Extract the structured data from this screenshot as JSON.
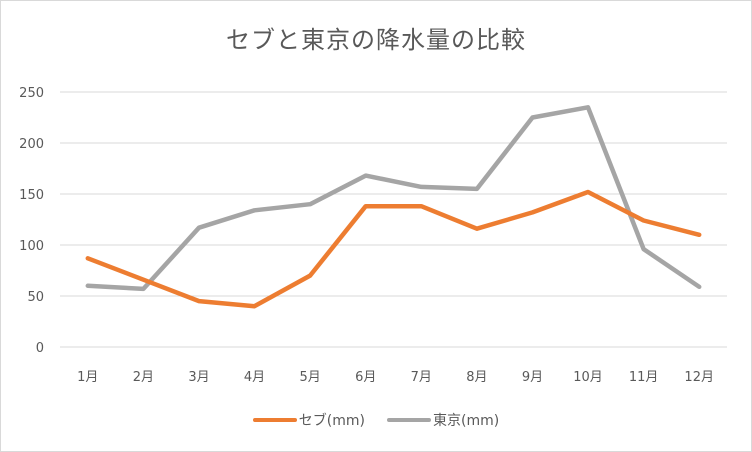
{
  "chart_data": {
    "type": "line",
    "title": "セブと東京の降水量の比較",
    "xlabel": "",
    "ylabel": "",
    "categories": [
      "1月",
      "2月",
      "3月",
      "4月",
      "5月",
      "6月",
      "7月",
      "8月",
      "9月",
      "10月",
      "11月",
      "12月"
    ],
    "series": [
      {
        "name": "セブ(mm)",
        "color": "#ED7D31",
        "values": [
          87,
          66,
          45,
          40,
          70,
          138,
          138,
          116,
          132,
          152,
          124,
          110
        ]
      },
      {
        "name": "東京(mm)",
        "color": "#A5A5A5",
        "values": [
          60,
          57,
          117,
          134,
          140,
          168,
          157,
          155,
          225,
          235,
          96,
          59
        ]
      }
    ],
    "ylim": [
      0,
      250
    ],
    "yticks": [
      0,
      50,
      100,
      150,
      200,
      250
    ],
    "grid": true,
    "legend_position": "bottom"
  },
  "legend": {
    "items": [
      {
        "label": "セブ(mm)",
        "color": "#ED7D31"
      },
      {
        "label": "東京(mm)",
        "color": "#A5A5A5"
      }
    ]
  }
}
